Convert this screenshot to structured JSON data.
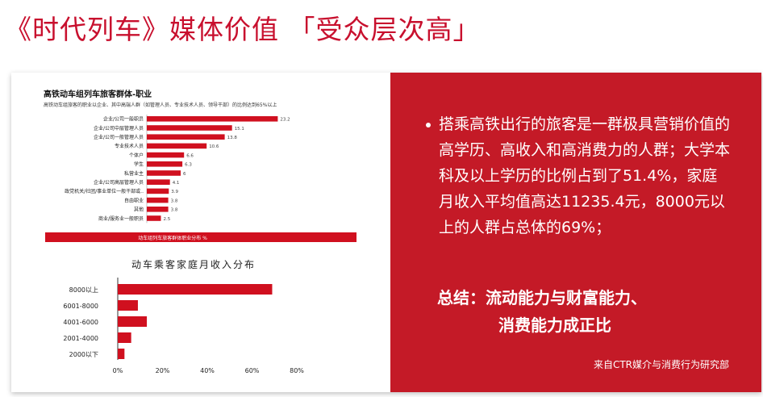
{
  "page": {
    "title": "《时代列车》媒体价值 「受众层次高」"
  },
  "colors": {
    "accent": "#c8102e",
    "panel": "#c41a27",
    "bar": "#d0101f"
  },
  "chart_data": [
    {
      "type": "bar",
      "orientation": "horizontal",
      "title": "高铁动车组列车旅客群体-职业",
      "subtitle": "高铁动车组旅客的职业以企业、其中高端人群（如管理人员、专业技术人员、领导干部）的比例达到65%以上",
      "categories": [
        "企业/公司一般职员",
        "企业/公司中层管理人员",
        "企业/公司一般管理人员",
        "专业技术人员",
        "个体户",
        "学生",
        "私营业主",
        "企业/公司高层管理人员",
        "政党机关/社团/事业单位一般干部或..",
        "自由职业",
        "其他",
        "商业/服务业一般职员"
      ],
      "values": [
        23.2,
        15.1,
        13.8,
        10.6,
        6.6,
        6.3,
        6,
        4.1,
        3.9,
        3.8,
        3.8,
        2.5
      ],
      "value_labels": [
        "23.2",
        "15.1",
        "13.8",
        "10.6",
        "6.6",
        "6.3",
        "6",
        "4.1",
        "3.9",
        "3.8",
        "3.8",
        "2.5"
      ],
      "footer": "动车组列车旅客群体职业分布 %",
      "xlim": [
        0,
        34
      ]
    },
    {
      "type": "bar",
      "orientation": "horizontal",
      "title": "动车乘客家庭月收入分布",
      "categories": [
        "8000以上",
        "6001-8000",
        "4001-6000",
        "2001-4000",
        "2000以下"
      ],
      "values": [
        69,
        9,
        13,
        6,
        3
      ],
      "xlim": [
        0,
        80
      ],
      "xticks": [
        "0%",
        "20%",
        "40%",
        "60%",
        "80%"
      ],
      "grid": false
    }
  ],
  "right_panel": {
    "bullet": "搭乘高铁出行的旅客是一群极具营销价值的高学历、高收入和高消费力的人群；大学本科及以上学历的比例占到了51.4%，家庭月收入平均值高达11235.4元，8000元以上的人群占总体的69%；",
    "summary_line1": "总结：流动能力与财富能力、",
    "summary_line2": "消费能力成正比",
    "source": "来自CTR媒介与消费行为研究部"
  }
}
